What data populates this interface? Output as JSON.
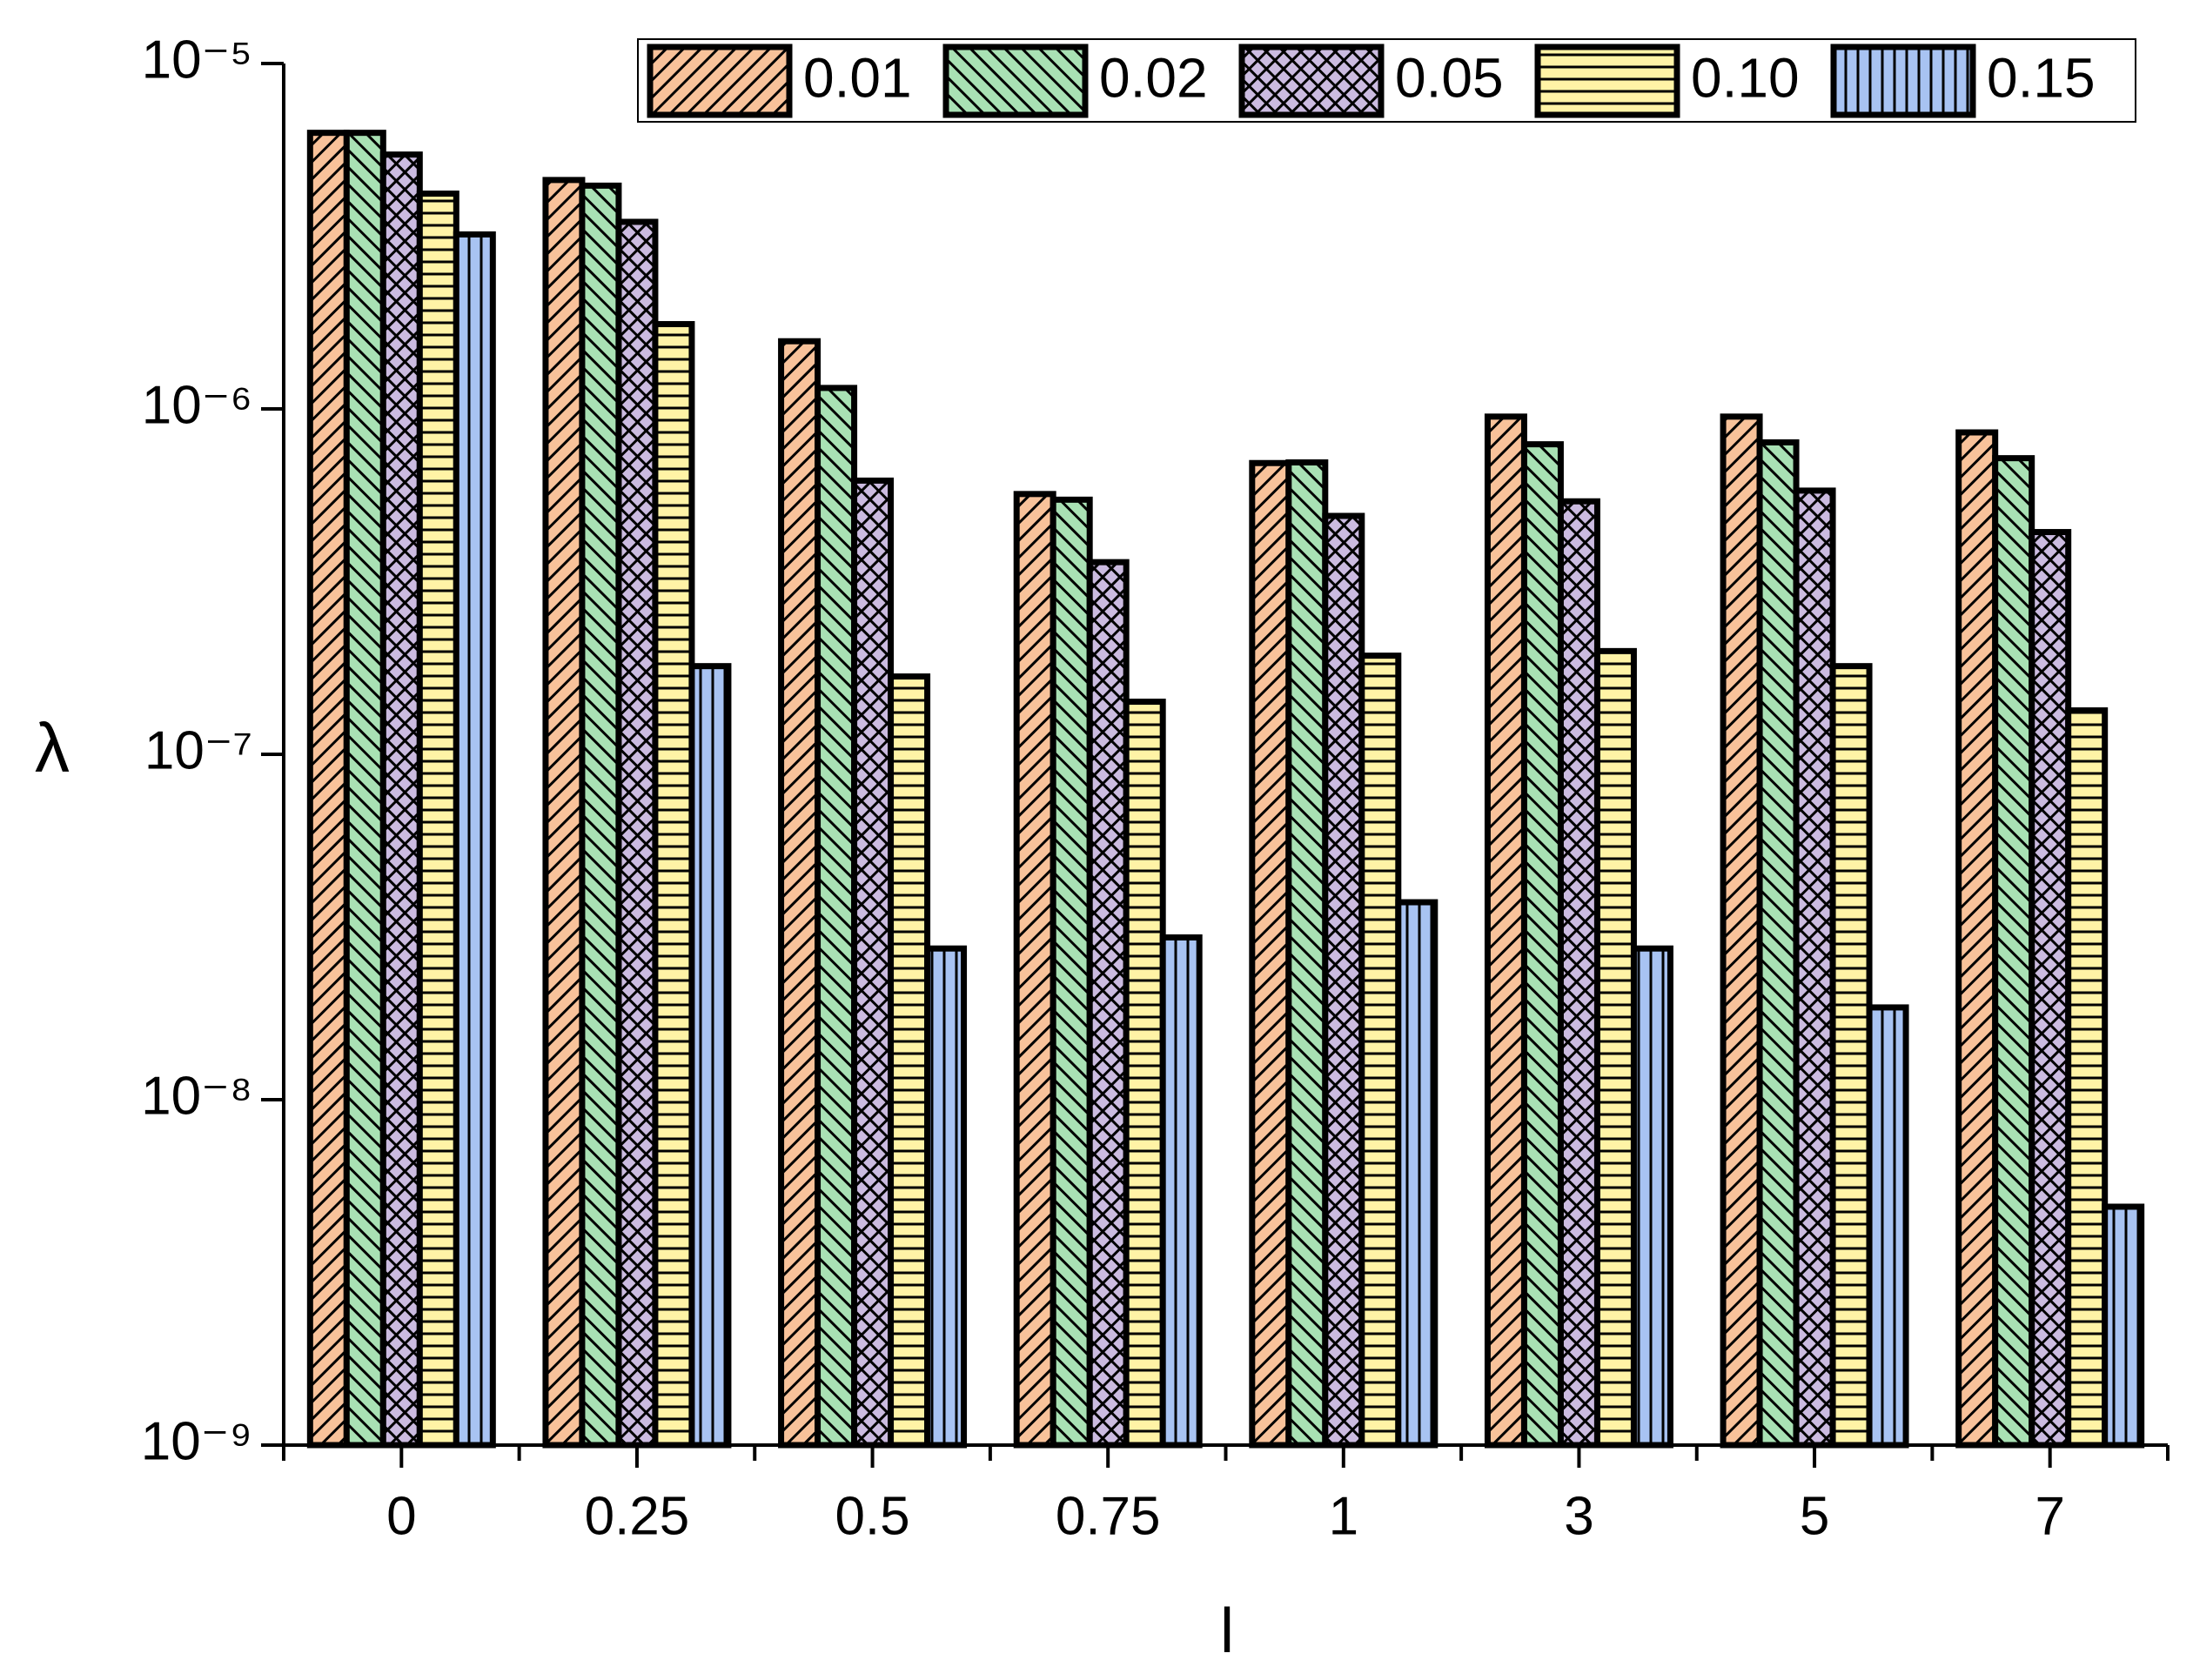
{
  "chart_data": {
    "type": "bar",
    "x_label": "l",
    "y_label": "λ",
    "categories": [
      "0",
      "0.25",
      "0.5",
      "0.75",
      "1",
      "3",
      "5",
      "7"
    ],
    "series": [
      {
        "name": "0.01",
        "color": "#f8c29a",
        "pattern": "diagonal",
        "values": [
          6.3e-06,
          4.6e-06,
          1.57e-06,
          5.67e-07,
          6.97e-07,
          9.5e-07,
          9.5e-07,
          8.55e-07
        ]
      },
      {
        "name": "0.02",
        "color": "#a9e1b4",
        "pattern": "back-diagonal",
        "values": [
          6.3e-06,
          4.43e-06,
          1.15e-06,
          5.46e-07,
          7e-07,
          7.9e-07,
          8e-07,
          7.2e-07
        ]
      },
      {
        "name": "0.05",
        "color": "#cbbbe0",
        "pattern": "crosshatch",
        "values": [
          5.45e-06,
          3.48e-06,
          6.2e-07,
          3.6e-07,
          4.9e-07,
          5.4e-07,
          5.8e-07,
          4.4e-07
        ]
      },
      {
        "name": "0.10",
        "color": "#fff3a6",
        "pattern": "horizontal",
        "values": [
          4.2e-06,
          1.76e-06,
          1.68e-07,
          1.42e-07,
          1.93e-07,
          1.99e-07,
          1.8e-07,
          1.34e-07
        ]
      },
      {
        "name": "0.15",
        "color": "#a8c3f2",
        "pattern": "vertical",
        "values": [
          3.2e-06,
          1.8e-07,
          2.74e-08,
          2.95e-08,
          3.73e-08,
          2.74e-08,
          1.85e-08,
          4.9e-09
        ]
      }
    ],
    "ylim": [
      1e-09,
      1e-05
    ],
    "log_y": true,
    "yticks": [
      {
        "value": 1e-09,
        "label": "10⁻⁹"
      },
      {
        "value": 1e-08,
        "label": "10⁻⁸"
      },
      {
        "value": 1e-07,
        "label": "10⁻⁷"
      },
      {
        "value": 1e-06,
        "label": "10⁻⁶"
      },
      {
        "value": 1e-05,
        "label": "10⁻⁵"
      }
    ],
    "legend": "top-right",
    "grid": false
  }
}
